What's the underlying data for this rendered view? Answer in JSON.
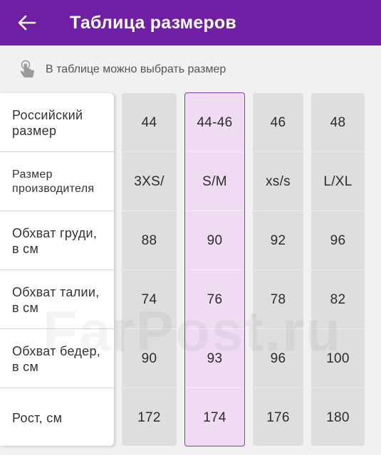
{
  "header": {
    "title": "Таблица размеров",
    "background_color": "#6e1fa3",
    "back_icon": "arrow-left-icon"
  },
  "hint": {
    "icon": "tap-hand-icon",
    "text": "В таблице можно выбрать размер"
  },
  "rows": [
    {
      "label": "Российский размер"
    },
    {
      "label": "Размер производителя"
    },
    {
      "label": "Обхват груди, в см"
    },
    {
      "label": "Обхват талии, в см"
    },
    {
      "label": "Обхват бедер, в см"
    },
    {
      "label": "Рост, см"
    }
  ],
  "columns": [
    {
      "values": [
        "44",
        "3XS/",
        "88",
        "74",
        "90",
        "172"
      ],
      "selected": false
    },
    {
      "values": [
        "44-46",
        "S/M",
        "90",
        "76",
        "93",
        "174"
      ],
      "selected": true
    },
    {
      "values": [
        "46",
        "xs/s",
        "92",
        "78",
        "96",
        "176"
      ],
      "selected": false
    },
    {
      "values": [
        "48",
        "L/XL",
        "96",
        "82",
        "100",
        "180"
      ],
      "selected": false
    }
  ],
  "colors": {
    "selected_fill": "#efdcf3",
    "selected_border": "#8a3fb1",
    "column_fill": "#dedede"
  },
  "watermark": "FarPost.ru"
}
